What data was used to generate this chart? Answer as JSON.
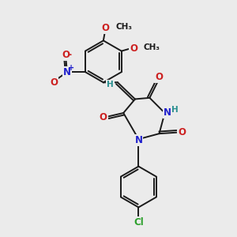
{
  "bg_color": "#ebebeb",
  "bond_color": "#1a1a1a",
  "bond_width": 1.4,
  "atom_colors": {
    "C": "#1a1a1a",
    "H": "#2a9090",
    "N": "#2020cc",
    "O": "#cc2020",
    "Cl": "#2da02d"
  },
  "font_size": 8.5,
  "small_font_size": 7.5,
  "methoxy_font_size": 7.5
}
